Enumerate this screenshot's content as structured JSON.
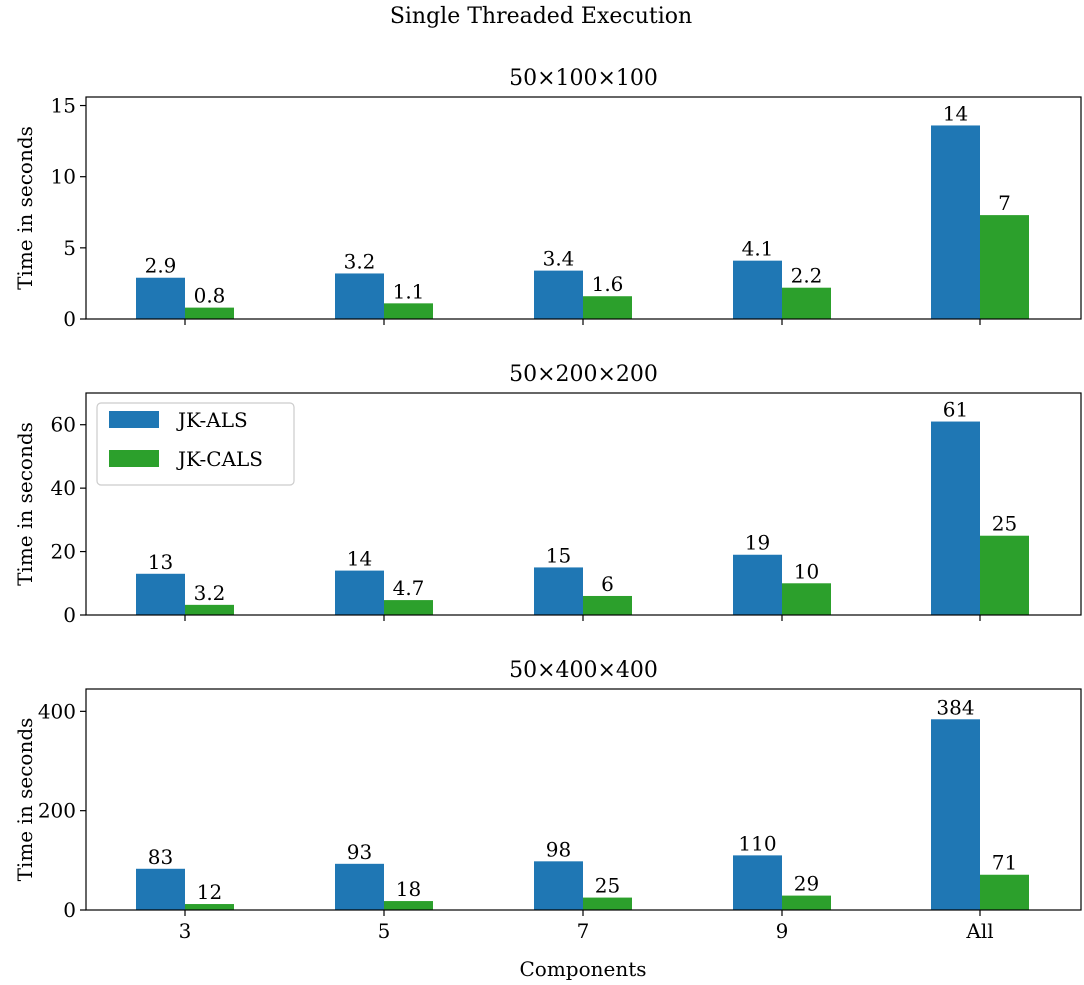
{
  "figure": {
    "title": "Single Threaded Execution",
    "xlabel": "Components",
    "ylabel": "Time in seconds"
  },
  "legend": {
    "placement": "upper-left of middle panel",
    "entries": [
      {
        "name": "JK-ALS",
        "color": "#1f77b4"
      },
      {
        "name": "JK-CALS",
        "color": "#2ca02c"
      }
    ]
  },
  "chart_data": [
    {
      "type": "bar",
      "title": "50×100×100",
      "categories": [
        "3",
        "5",
        "7",
        "9",
        "All"
      ],
      "ylabel": "Time in seconds",
      "xlabel": "Components",
      "ylim": [
        0,
        15.6
      ],
      "yticks": [
        0,
        5,
        10,
        15
      ],
      "series": [
        {
          "name": "JK-ALS",
          "color": "#1f77b4",
          "values": [
            2.9,
            3.2,
            3.4,
            4.1,
            13.6
          ],
          "labels": [
            "2.9",
            "3.2",
            "3.4",
            "4.1",
            "14"
          ]
        },
        {
          "name": "JK-CALS",
          "color": "#2ca02c",
          "values": [
            0.8,
            1.1,
            1.6,
            2.2,
            7.3
          ],
          "labels": [
            "0.8",
            "1.1",
            "1.6",
            "2.2",
            "7"
          ]
        }
      ]
    },
    {
      "type": "bar",
      "title": "50×200×200",
      "categories": [
        "3",
        "5",
        "7",
        "9",
        "All"
      ],
      "ylabel": "Time in seconds",
      "xlabel": "Components",
      "ylim": [
        0,
        70
      ],
      "yticks": [
        0,
        20,
        40,
        60
      ],
      "series": [
        {
          "name": "JK-ALS",
          "color": "#1f77b4",
          "values": [
            13,
            14,
            15,
            19,
            61
          ],
          "labels": [
            "13",
            "14",
            "15",
            "19",
            "61"
          ]
        },
        {
          "name": "JK-CALS",
          "color": "#2ca02c",
          "values": [
            3.2,
            4.7,
            6,
            10,
            25
          ],
          "labels": [
            "3.2",
            "4.7",
            "6",
            "10",
            "25"
          ]
        }
      ]
    },
    {
      "type": "bar",
      "title": "50×400×400",
      "categories": [
        "3",
        "5",
        "7",
        "9",
        "All"
      ],
      "ylabel": "Time in seconds",
      "xlabel": "Components",
      "ylim": [
        0,
        445
      ],
      "yticks": [
        0,
        200,
        400
      ],
      "series": [
        {
          "name": "JK-ALS",
          "color": "#1f77b4",
          "values": [
            83,
            93,
            98,
            110,
            384
          ],
          "labels": [
            "83",
            "93",
            "98",
            "110",
            "384"
          ]
        },
        {
          "name": "JK-CALS",
          "color": "#2ca02c",
          "values": [
            12,
            18,
            25,
            29,
            71
          ],
          "labels": [
            "12",
            "18",
            "25",
            "29",
            "71"
          ]
        }
      ]
    }
  ]
}
